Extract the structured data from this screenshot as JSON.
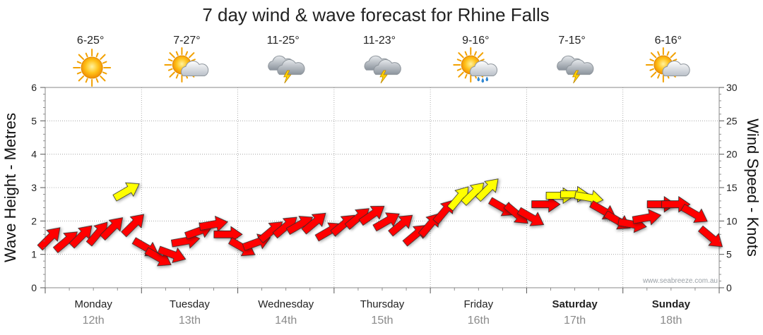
{
  "chart_data": {
    "type": "line",
    "title": "7 day wind & wave forecast for Rhine Falls",
    "ylabel_left": "Wave Height - Metres",
    "ylabel_right": "Wind Speed - Knots",
    "ylim_left": [
      0,
      6
    ],
    "ylim_right": [
      0,
      30
    ],
    "yticks_left": [
      "0",
      "1",
      "2",
      "3",
      "4",
      "5",
      "6"
    ],
    "yticks_right": [
      "0",
      "5",
      "10",
      "15",
      "20",
      "25",
      "30"
    ],
    "grid": true,
    "watermark": "www.seabreeze.com.au",
    "days": [
      {
        "name": "Monday",
        "date": "12th",
        "bold": false,
        "temp": "6-25°",
        "weather": "sunny"
      },
      {
        "name": "Tuesday",
        "date": "13th",
        "bold": false,
        "temp": "7-27°",
        "weather": "partly-cloudy"
      },
      {
        "name": "Wednesday",
        "date": "14th",
        "bold": false,
        "temp": "11-25°",
        "weather": "thunderstorm"
      },
      {
        "name": "Thursday",
        "date": "15th",
        "bold": false,
        "temp": "11-23°",
        "weather": "thunderstorm"
      },
      {
        "name": "Friday",
        "date": "16th",
        "bold": false,
        "temp": "9-16°",
        "weather": "showers"
      },
      {
        "name": "Saturday",
        "date": "17th",
        "bold": true,
        "temp": "7-15°",
        "weather": "thunderstorm"
      },
      {
        "name": "Sunday",
        "date": "18th",
        "bold": true,
        "temp": "6-16°",
        "weather": "partly-cloudy"
      }
    ],
    "series": [
      {
        "name": "Wind Speed",
        "unit": "knots",
        "color_strong": "#ff0000",
        "color_light": "#ffff00",
        "light_threshold_knots": 13,
        "points": [
          {
            "t": 0.05,
            "knots": 7.5,
            "dir": 225
          },
          {
            "t": 0.22,
            "knots": 7.0,
            "dir": 230
          },
          {
            "t": 0.38,
            "knots": 7.8,
            "dir": 225
          },
          {
            "t": 0.55,
            "knots": 8.2,
            "dir": 220
          },
          {
            "t": 0.7,
            "knots": 9.0,
            "dir": 225
          },
          {
            "t": 0.85,
            "knots": 14.5,
            "dir": 240
          },
          {
            "t": 0.92,
            "knots": 9.5,
            "dir": 225
          },
          {
            "t": 1.05,
            "knots": 6.0,
            "dir": 300
          },
          {
            "t": 1.18,
            "knots": 4.5,
            "dir": 300
          },
          {
            "t": 1.32,
            "knots": 5.0,
            "dir": 290
          },
          {
            "t": 1.46,
            "knots": 7.0,
            "dir": 260
          },
          {
            "t": 1.6,
            "knots": 8.5,
            "dir": 250
          },
          {
            "t": 1.75,
            "knots": 9.5,
            "dir": 260
          },
          {
            "t": 1.9,
            "knots": 8.0,
            "dir": 270
          },
          {
            "t": 2.05,
            "knots": 6.0,
            "dir": 300
          },
          {
            "t": 2.2,
            "knots": 6.8,
            "dir": 250
          },
          {
            "t": 2.35,
            "knots": 8.5,
            "dir": 230
          },
          {
            "t": 2.5,
            "knots": 9.2,
            "dir": 230
          },
          {
            "t": 2.65,
            "knots": 9.5,
            "dir": 240
          },
          {
            "t": 2.8,
            "knots": 9.8,
            "dir": 230
          },
          {
            "t": 2.95,
            "knots": 8.5,
            "dir": 240
          },
          {
            "t": 3.1,
            "knots": 9.5,
            "dir": 230
          },
          {
            "t": 3.25,
            "knots": 10.5,
            "dir": 230
          },
          {
            "t": 3.4,
            "knots": 11.0,
            "dir": 235
          },
          {
            "t": 3.55,
            "knots": 10.0,
            "dir": 240
          },
          {
            "t": 3.7,
            "knots": 9.5,
            "dir": 230
          },
          {
            "t": 3.85,
            "knots": 8.0,
            "dir": 230
          },
          {
            "t": 4.0,
            "knots": 9.5,
            "dir": 220
          },
          {
            "t": 4.15,
            "knots": 11.5,
            "dir": 220
          },
          {
            "t": 4.3,
            "knots": 13.5,
            "dir": 220
          },
          {
            "t": 4.45,
            "knots": 14.2,
            "dir": 225
          },
          {
            "t": 4.6,
            "knots": 14.8,
            "dir": 225
          },
          {
            "t": 4.75,
            "knots": 12.0,
            "dir": 300
          },
          {
            "t": 4.9,
            "knots": 11.0,
            "dir": 310
          },
          {
            "t": 5.05,
            "knots": 10.5,
            "dir": 300
          },
          {
            "t": 5.2,
            "knots": 12.5,
            "dir": 270
          },
          {
            "t": 5.35,
            "knots": 13.8,
            "dir": 270
          },
          {
            "t": 5.5,
            "knots": 14.0,
            "dir": 270
          },
          {
            "t": 5.65,
            "knots": 13.5,
            "dir": 280
          },
          {
            "t": 5.8,
            "knots": 11.5,
            "dir": 300
          },
          {
            "t": 5.95,
            "knots": 10.0,
            "dir": 300
          },
          {
            "t": 6.1,
            "knots": 9.5,
            "dir": 280
          },
          {
            "t": 6.25,
            "knots": 10.5,
            "dir": 260
          },
          {
            "t": 6.4,
            "knots": 12.5,
            "dir": 270
          },
          {
            "t": 6.55,
            "knots": 12.5,
            "dir": 270
          },
          {
            "t": 6.75,
            "knots": 11.0,
            "dir": 300
          },
          {
            "t": 6.92,
            "knots": 7.5,
            "dir": 310
          }
        ]
      }
    ]
  }
}
